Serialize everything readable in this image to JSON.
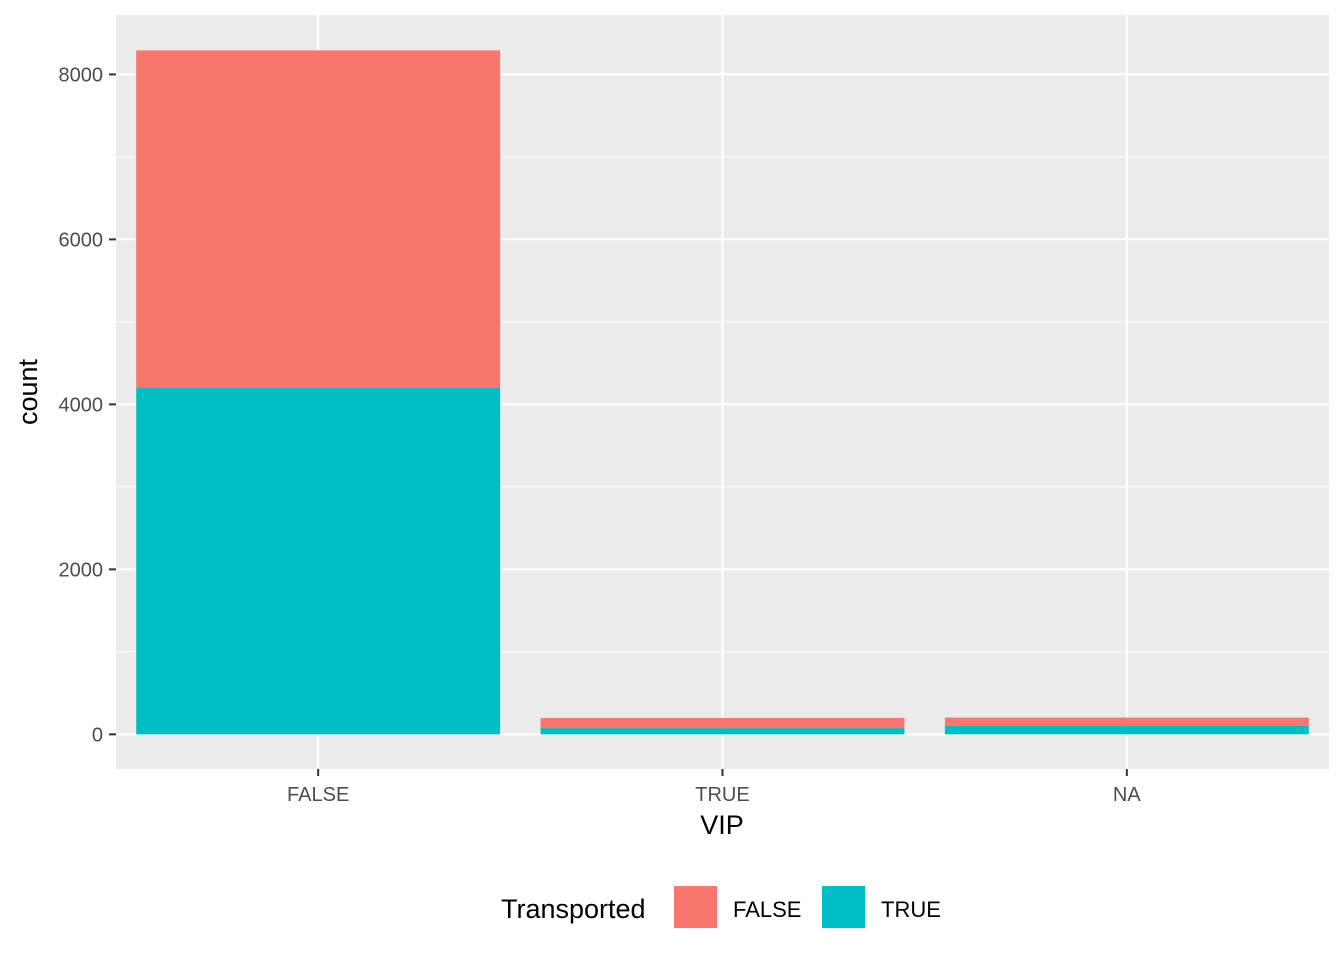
{
  "chart_data": {
    "type": "bar",
    "stacked": true,
    "xlabel": "VIP",
    "ylabel": "count",
    "categories": [
      "FALSE",
      "TRUE",
      "NA"
    ],
    "series": [
      {
        "name": "FALSE",
        "color": "#F8766D",
        "values": [
          4093,
          123,
          98
        ]
      },
      {
        "name": "TRUE",
        "color": "#00BFC4",
        "values": [
          4198,
          76,
          105
        ]
      }
    ],
    "ylim": [
      -420,
      8720
    ],
    "yticks": [
      0,
      2000,
      4000,
      6000,
      8000
    ],
    "grid": true,
    "panel_background": "#EBEBEB",
    "legend": {
      "title": "Transported",
      "position": "bottom",
      "entries": [
        "FALSE",
        "TRUE"
      ]
    }
  }
}
